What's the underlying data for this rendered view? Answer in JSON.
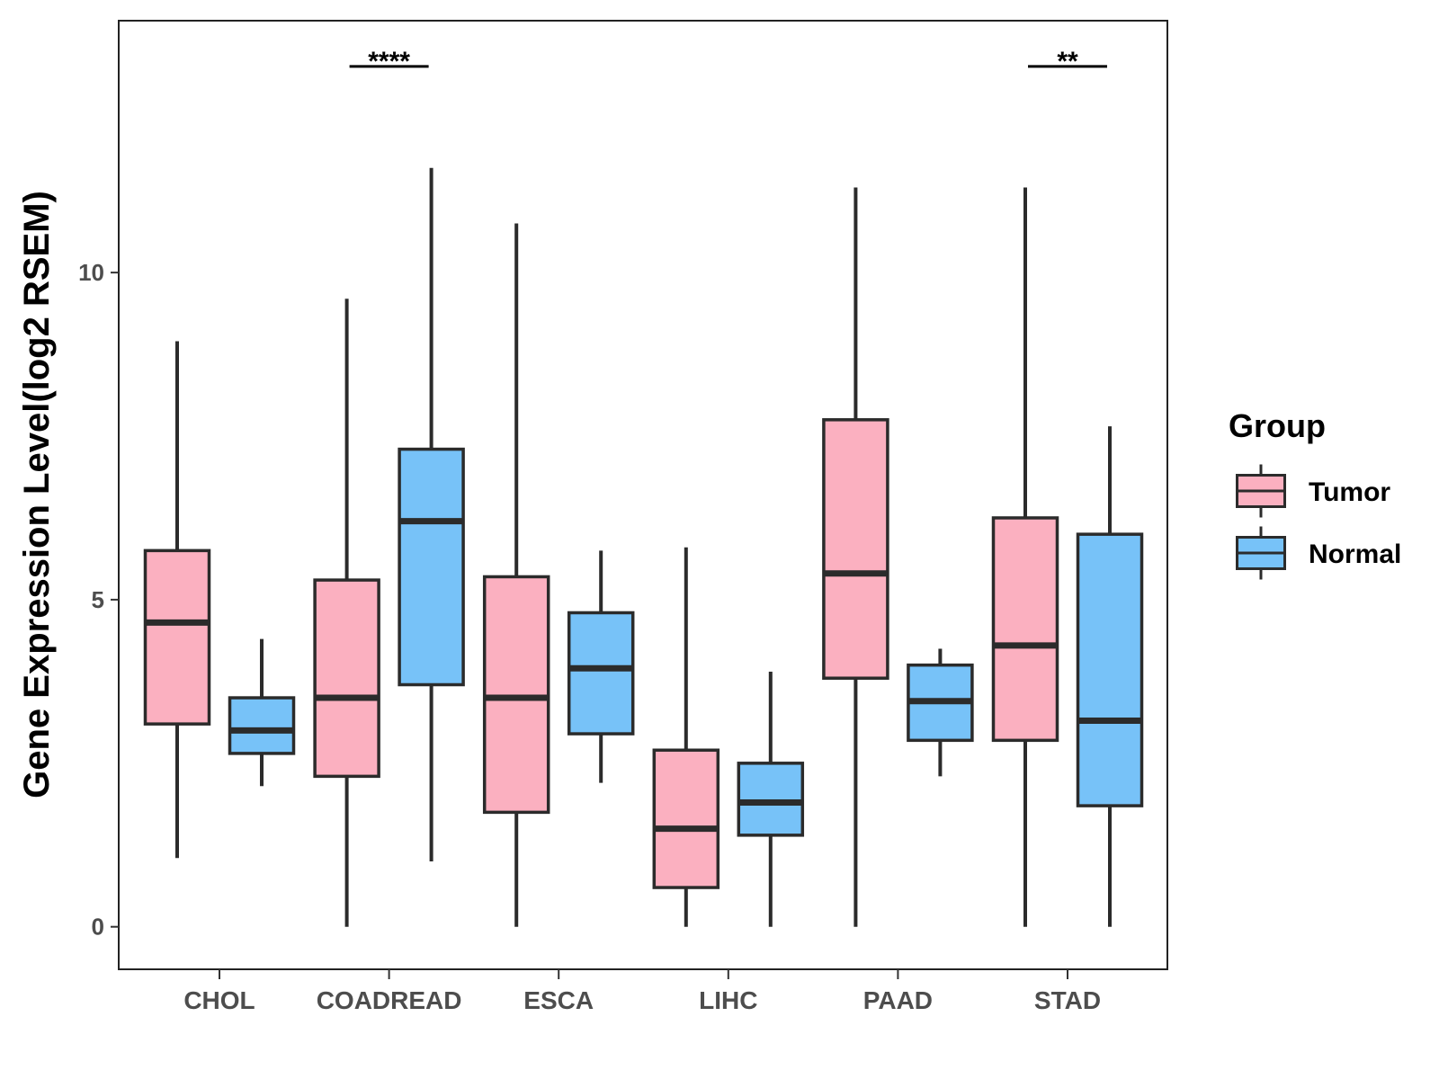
{
  "chart_data": {
    "type": "boxplot",
    "title": "",
    "xlabel": "",
    "ylabel": "Gene Expression Level(log2 RSEM)",
    "ylim": [
      -0.65,
      13.85
    ],
    "yticks": [
      0,
      5,
      10
    ],
    "categories": [
      "CHOL",
      "COADREAD",
      "ESCA",
      "LIHC",
      "PAAD",
      "STAD"
    ],
    "legend": {
      "title": "Group",
      "position": "right",
      "items": [
        {
          "name": "Tumor",
          "color": "#FBB0C0"
        },
        {
          "name": "Normal",
          "color": "#77C2F8"
        }
      ]
    },
    "series": [
      {
        "name": "Tumor",
        "color": "#FBB0C0",
        "boxes": [
          {
            "min": 1.05,
            "q1": 3.1,
            "median": 4.65,
            "q3": 5.75,
            "max": 8.95
          },
          {
            "min": 0.0,
            "q1": 2.3,
            "median": 3.5,
            "q3": 5.3,
            "max": 9.6
          },
          {
            "min": 0.0,
            "q1": 1.75,
            "median": 3.5,
            "q3": 5.35,
            "max": 10.75
          },
          {
            "min": 0.0,
            "q1": 0.6,
            "median": 1.5,
            "q3": 2.7,
            "max": 5.8
          },
          {
            "min": 0.0,
            "q1": 3.8,
            "median": 5.4,
            "q3": 7.75,
            "max": 11.3
          },
          {
            "min": 0.0,
            "q1": 2.85,
            "median": 4.3,
            "q3": 6.25,
            "max": 11.3
          }
        ]
      },
      {
        "name": "Normal",
        "color": "#77C2F8",
        "boxes": [
          {
            "min": 2.15,
            "q1": 2.65,
            "median": 3.0,
            "q3": 3.5,
            "max": 4.4
          },
          {
            "min": 1.0,
            "q1": 3.7,
            "median": 6.2,
            "q3": 7.3,
            "max": 11.6
          },
          {
            "min": 2.2,
            "q1": 2.95,
            "median": 3.95,
            "q3": 4.8,
            "max": 5.75
          },
          {
            "min": 0.0,
            "q1": 1.4,
            "median": 1.9,
            "q3": 2.5,
            "max": 3.9
          },
          {
            "min": 2.3,
            "q1": 2.85,
            "median": 3.45,
            "q3": 4.0,
            "max": 4.25
          },
          {
            "min": 0.0,
            "q1": 1.85,
            "median": 3.15,
            "q3": 6.0,
            "max": 7.65
          }
        ]
      }
    ],
    "annotations": [
      {
        "category": "COADREAD",
        "text": "****",
        "y": 13.15
      },
      {
        "category": "STAD",
        "text": "**",
        "y": 13.15
      }
    ]
  }
}
